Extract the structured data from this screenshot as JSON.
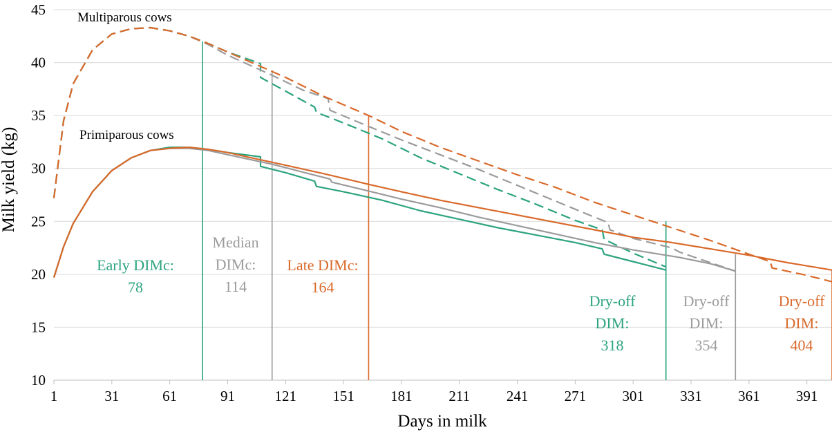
{
  "colors": {
    "early": "#2ca37f",
    "median": "#9b9b9b",
    "late": "#d9692a",
    "grid": "#d9d9d9"
  },
  "chart_data": {
    "type": "line",
    "xlabel": "Days in milk",
    "ylabel": "Milk yield (kg)",
    "xlim": [
      1,
      404
    ],
    "ylim": [
      10,
      45
    ],
    "xticks": [
      1,
      31,
      61,
      91,
      121,
      151,
      181,
      211,
      241,
      271,
      301,
      331,
      361,
      391
    ],
    "yticks": [
      10,
      15,
      20,
      25,
      30,
      35,
      40,
      45
    ],
    "grid": "horizontal",
    "group_labels": {
      "multiparous": "Multiparous cows",
      "primiparous": "Primiparous cows"
    },
    "series": [
      {
        "group": "multiparous",
        "dimc": "early",
        "style": "dashed",
        "color": "#2ca37f",
        "points": [
          [
            1,
            27.2
          ],
          [
            6,
            34.5
          ],
          [
            11,
            38.0
          ],
          [
            21,
            41.2
          ],
          [
            31,
            42.7
          ],
          [
            41,
            43.2
          ],
          [
            51,
            43.3
          ],
          [
            61,
            43.0
          ],
          [
            71,
            42.5
          ],
          [
            81,
            41.8
          ],
          [
            91,
            41.0
          ],
          [
            108,
            39.9
          ],
          [
            108,
            38.6
          ],
          [
            121,
            37.3
          ],
          [
            136,
            35.8
          ],
          [
            137,
            35.3
          ],
          [
            151,
            34.3
          ],
          [
            171,
            32.8
          ],
          [
            191,
            31.0
          ],
          [
            211,
            29.5
          ],
          [
            231,
            28.0
          ],
          [
            251,
            26.6
          ],
          [
            271,
            25.1
          ],
          [
            285,
            24.2
          ],
          [
            286,
            23.3
          ],
          [
            301,
            22.0
          ],
          [
            318,
            20.7
          ]
        ]
      },
      {
        "group": "multiparous",
        "dimc": "median",
        "style": "dashed",
        "color": "#9b9b9b",
        "points": [
          [
            1,
            27.2
          ],
          [
            6,
            34.5
          ],
          [
            11,
            38.0
          ],
          [
            21,
            41.2
          ],
          [
            31,
            42.7
          ],
          [
            41,
            43.2
          ],
          [
            51,
            43.3
          ],
          [
            61,
            43.0
          ],
          [
            71,
            42.5
          ],
          [
            81,
            41.7
          ],
          [
            91,
            40.7
          ],
          [
            108,
            39.3
          ],
          [
            114,
            38.8
          ],
          [
            130,
            37.4
          ],
          [
            143,
            36.6
          ],
          [
            144,
            35.5
          ],
          [
            161,
            34.2
          ],
          [
            181,
            32.7
          ],
          [
            201,
            31.3
          ],
          [
            221,
            29.9
          ],
          [
            241,
            28.4
          ],
          [
            261,
            26.9
          ],
          [
            281,
            25.4
          ],
          [
            288,
            24.9
          ],
          [
            289,
            24.2
          ],
          [
            301,
            23.4
          ],
          [
            321,
            22.5
          ],
          [
            325,
            22.1
          ],
          [
            341,
            21.1
          ],
          [
            354,
            20.3
          ]
        ]
      },
      {
        "group": "multiparous",
        "dimc": "late",
        "style": "dashed",
        "color": "#d9692a",
        "points": [
          [
            1,
            27.2
          ],
          [
            6,
            34.5
          ],
          [
            11,
            38.0
          ],
          [
            21,
            41.2
          ],
          [
            31,
            42.7
          ],
          [
            41,
            43.2
          ],
          [
            51,
            43.3
          ],
          [
            61,
            43.0
          ],
          [
            71,
            42.5
          ],
          [
            81,
            41.8
          ],
          [
            91,
            41.0
          ],
          [
            101,
            40.2
          ],
          [
            121,
            38.6
          ],
          [
            141,
            36.8
          ],
          [
            164,
            35.0
          ],
          [
            181,
            33.5
          ],
          [
            201,
            32.0
          ],
          [
            221,
            30.7
          ],
          [
            241,
            29.4
          ],
          [
            261,
            28.2
          ],
          [
            281,
            26.8
          ],
          [
            301,
            25.6
          ],
          [
            321,
            24.4
          ],
          [
            341,
            23.2
          ],
          [
            361,
            21.9
          ],
          [
            372,
            21.2
          ],
          [
            373,
            20.6
          ],
          [
            391,
            19.9
          ],
          [
            404,
            19.3
          ]
        ]
      },
      {
        "group": "primiparous",
        "dimc": "early",
        "style": "solid",
        "color": "#2ca37f",
        "points": [
          [
            1,
            19.7
          ],
          [
            6,
            22.6
          ],
          [
            11,
            24.8
          ],
          [
            21,
            27.8
          ],
          [
            31,
            29.8
          ],
          [
            41,
            31.0
          ],
          [
            51,
            31.7
          ],
          [
            61,
            32.0
          ],
          [
            71,
            32.0
          ],
          [
            81,
            31.8
          ],
          [
            91,
            31.5
          ],
          [
            108,
            31.1
          ],
          [
            108,
            30.2
          ],
          [
            121,
            29.6
          ],
          [
            136,
            28.8
          ],
          [
            137,
            28.3
          ],
          [
            151,
            27.8
          ],
          [
            171,
            27.0
          ],
          [
            191,
            26.0
          ],
          [
            211,
            25.2
          ],
          [
            231,
            24.4
          ],
          [
            251,
            23.7
          ],
          [
            271,
            23.0
          ],
          [
            285,
            22.4
          ],
          [
            286,
            21.9
          ],
          [
            301,
            21.2
          ],
          [
            318,
            20.4
          ]
        ]
      },
      {
        "group": "primiparous",
        "dimc": "median",
        "style": "solid",
        "color": "#9b9b9b",
        "points": [
          [
            1,
            19.7
          ],
          [
            6,
            22.6
          ],
          [
            11,
            24.8
          ],
          [
            21,
            27.8
          ],
          [
            31,
            29.8
          ],
          [
            41,
            31.0
          ],
          [
            51,
            31.7
          ],
          [
            61,
            31.9
          ],
          [
            71,
            31.9
          ],
          [
            81,
            31.7
          ],
          [
            91,
            31.3
          ],
          [
            114,
            30.4
          ],
          [
            131,
            29.6
          ],
          [
            144,
            29.0
          ],
          [
            145,
            28.7
          ],
          [
            161,
            28.0
          ],
          [
            181,
            27.1
          ],
          [
            201,
            26.3
          ],
          [
            221,
            25.4
          ],
          [
            241,
            24.6
          ],
          [
            261,
            23.8
          ],
          [
            281,
            23.0
          ],
          [
            301,
            22.3
          ],
          [
            325,
            21.6
          ],
          [
            341,
            21.0
          ],
          [
            354,
            20.3
          ]
        ]
      },
      {
        "group": "primiparous",
        "dimc": "late",
        "style": "solid",
        "color": "#d9692a",
        "points": [
          [
            1,
            19.7
          ],
          [
            6,
            22.6
          ],
          [
            11,
            24.8
          ],
          [
            21,
            27.8
          ],
          [
            31,
            29.8
          ],
          [
            41,
            31.0
          ],
          [
            51,
            31.7
          ],
          [
            61,
            31.9
          ],
          [
            71,
            32.0
          ],
          [
            81,
            31.8
          ],
          [
            91,
            31.5
          ],
          [
            101,
            31.1
          ],
          [
            121,
            30.3
          ],
          [
            141,
            29.5
          ],
          [
            164,
            28.5
          ],
          [
            181,
            27.8
          ],
          [
            201,
            27.0
          ],
          [
            221,
            26.3
          ],
          [
            241,
            25.6
          ],
          [
            261,
            24.9
          ],
          [
            281,
            24.2
          ],
          [
            301,
            23.5
          ],
          [
            321,
            23.0
          ],
          [
            341,
            22.4
          ],
          [
            361,
            21.8
          ],
          [
            381,
            21.1
          ],
          [
            404,
            20.4
          ]
        ]
      }
    ],
    "vlines": [
      {
        "x": 78,
        "color": "#2ca37f"
      },
      {
        "x": 114,
        "color": "#9b9b9b"
      },
      {
        "x": 164,
        "color": "#d9692a"
      },
      {
        "x": 318,
        "color": "#2ca37f"
      },
      {
        "x": 354,
        "color": "#9b9b9b"
      },
      {
        "x": 404,
        "color": "#d9692a"
      }
    ],
    "annotations": [
      {
        "lines": [
          "Early DIMc:",
          "78"
        ],
        "color": "#2ca37f"
      },
      {
        "lines": [
          "Median",
          "DIMc:",
          "114"
        ],
        "color": "#9b9b9b"
      },
      {
        "lines": [
          "Late DIMc:",
          "164"
        ],
        "color": "#d9692a"
      },
      {
        "lines": [
          "Dry-off",
          "DIM:",
          "318"
        ],
        "color": "#2ca37f"
      },
      {
        "lines": [
          "Dry-off",
          "DIM:",
          "354"
        ],
        "color": "#9b9b9b"
      },
      {
        "lines": [
          "Dry-off",
          "DIM:",
          "404"
        ],
        "color": "#d9692a"
      }
    ]
  }
}
